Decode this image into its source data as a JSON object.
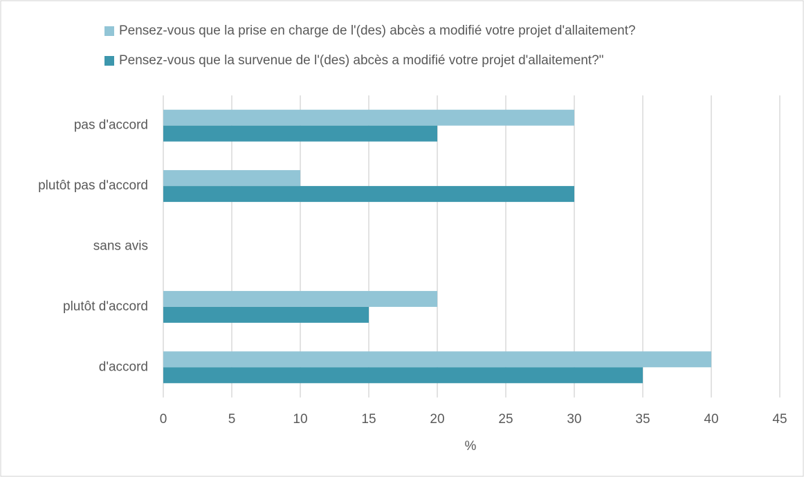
{
  "chart_data": {
    "type": "horizontal_bar",
    "categories": [
      "pas d'accord",
      "plutôt pas d'accord",
      "sans avis",
      "plutôt d'accord",
      "d'accord"
    ],
    "series": [
      {
        "name": "Pensez-vous que la prise en charge de l'(des) abcès a modifié votre projet d'allaitement?",
        "color": "#92c5d6",
        "values": [
          30,
          10,
          0,
          20,
          40
        ]
      },
      {
        "name": "Pensez-vous que la survenue de l'(des) abcès a modifié votre projet d'allaitement?\"",
        "color": "#3d97ad",
        "values": [
          20,
          30,
          0,
          15,
          35
        ]
      }
    ],
    "xlabel": "%",
    "xlim": [
      0,
      45
    ],
    "xticks": [
      0,
      5,
      10,
      15,
      20,
      25,
      30,
      35,
      40,
      45
    ],
    "grid": true,
    "legend": "top"
  }
}
